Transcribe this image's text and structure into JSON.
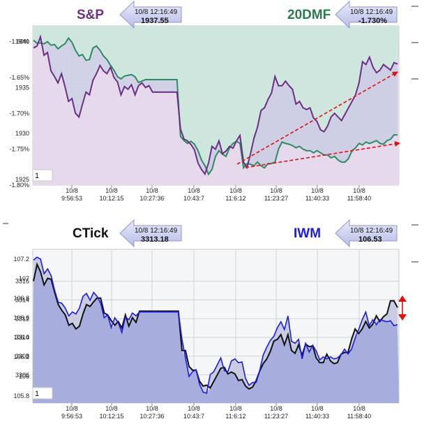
{
  "chart_data": [
    {
      "type": "line",
      "panel": "top",
      "series": [
        {
          "name": "S&P",
          "color": "#6a2f82",
          "values": [
            1939.3,
            1939.5,
            1940.5,
            1938.5,
            1938.8,
            1936.8,
            1936.2,
            1935.5,
            1936.5,
            1935.1,
            1933.5,
            1933.8,
            1932.2,
            1931.8,
            1933.2,
            1934.5,
            1934.2,
            1935.8,
            1936.5,
            1937.4,
            1936.8,
            1936.5,
            1937.2,
            1936.1,
            1935.6,
            1934.2,
            1935.1,
            1934.8,
            1935.3,
            1934.2,
            1935.2,
            1935.5,
            1935.0,
            1935.2,
            1934.5,
            1934.5,
            1934.5,
            1934.5,
            1934.5,
            1934.5,
            1934.5,
            1934.5,
            1930.5,
            1929.4,
            1929.2,
            1928.8,
            1928.2,
            1926.8,
            1926.1,
            1925.6,
            1926.8,
            1928.6,
            1928.3,
            1929.2,
            1927.8,
            1928.1,
            1928.6,
            1928.4,
            1929.2,
            1929.8,
            1926.9,
            1926.3,
            1927.8,
            1929.5,
            1930.7,
            1932.5,
            1932.8,
            1933.7,
            1934.4,
            1936.2,
            1935.2,
            1935.2,
            1935.7,
            1935.2,
            1934.8,
            1933.2,
            1933.5,
            1932.8,
            1932.6,
            1932.8,
            1931.7,
            1931.3,
            1930.4,
            1930.2,
            1930.8,
            1931.8,
            1932.2,
            1931.8,
            1931.4,
            1932.1,
            1932.8,
            1933.5,
            1934.2,
            1935.5,
            1937.8,
            1937.5,
            1938.3,
            1937.2,
            1936.6,
            1936.9,
            1937.5,
            1937.2,
            1936.9,
            1937.7,
            1937.55
          ]
        },
        {
          "name": "20DMF",
          "color": "#2e8a63",
          "values": [
            -1.598,
            -1.602,
            -1.602,
            -1.603,
            -1.6,
            -1.605,
            -1.604,
            -1.61,
            -1.606,
            -1.603,
            -1.595,
            -1.601,
            -1.612,
            -1.62,
            -1.618,
            -1.626,
            -1.625,
            -1.609,
            -1.606,
            -1.612,
            -1.62,
            -1.625,
            -1.633,
            -1.64,
            -1.649,
            -1.652,
            -1.648,
            -1.647,
            -1.646,
            -1.649,
            -1.657,
            -1.655,
            -1.653,
            -1.653,
            -1.653,
            -1.653,
            -1.653,
            -1.653,
            -1.653,
            -1.653,
            -1.653,
            -1.653,
            -1.732,
            -1.738,
            -1.742,
            -1.739,
            -1.743,
            -1.752,
            -1.765,
            -1.773,
            -1.785,
            -1.778,
            -1.76,
            -1.752,
            -1.757,
            -1.76,
            -1.748,
            -1.742,
            -1.739,
            -1.742,
            -1.776,
            -1.77,
            -1.771,
            -1.773,
            -1.768,
            -1.773,
            -1.776,
            -1.77,
            -1.77,
            -1.768,
            -1.75,
            -1.74,
            -1.742,
            -1.743,
            -1.745,
            -1.748,
            -1.746,
            -1.75,
            -1.752,
            -1.752,
            -1.755,
            -1.752,
            -1.755,
            -1.758,
            -1.758,
            -1.762,
            -1.76,
            -1.765,
            -1.768,
            -1.768,
            -1.763,
            -1.752,
            -1.748,
            -1.742,
            -1.744,
            -1.74,
            -1.742,
            -1.74,
            -1.738,
            -1.742,
            -1.743,
            -1.738,
            -1.736,
            -1.73,
            -1.73
          ]
        }
      ],
      "x_tick_dates": [
        "10/8",
        "10/8",
        "10/8",
        "10/8",
        "10/8",
        "10/8",
        "10/8",
        "10/8"
      ],
      "x_tick_times": [
        "9:56:53",
        "10:12:15",
        "10:27:36",
        "10:43:7",
        "11:6:12",
        "11:23:27",
        "11:40:33",
        "11:58:40"
      ],
      "y_left_ticks_primary": [
        "1940",
        "1935",
        "1930",
        "1925"
      ],
      "y_left_ticks_secondary": [
        "-1.60%",
        "-1.65%",
        "-1.70%",
        "-1.75%",
        "-1.80%"
      ],
      "y_primary_range": [
        1924.4,
        1941.7
      ],
      "y_secondary_range": [
        -1.8,
        -1.578
      ],
      "page_indicator": "1",
      "grid": true
    },
    {
      "type": "line",
      "panel": "bottom",
      "series": [
        {
          "name": "CTick",
          "color": "#111111",
          "values": [
            3316.0,
            3317.8,
            3317.0,
            3315.6,
            3316.3,
            3316.2,
            3314.8,
            3313.5,
            3312.9,
            3312.4,
            3311.3,
            3311.5,
            3310.9,
            3311.2,
            3312.5,
            3313.5,
            3313.3,
            3313.8,
            3314.2,
            3314.2,
            3312.6,
            3312.4,
            3311.8,
            3311.3,
            3311.7,
            3311.0,
            3312.4,
            3311.2,
            3312.1,
            3311.6,
            3312.8,
            3312.8,
            3312.8,
            3312.8,
            3312.8,
            3312.8,
            3312.8,
            3312.8,
            3312.8,
            3312.8,
            3312.8,
            3312.8,
            3308.6,
            3308.6,
            3306.9,
            3306.5,
            3306.5,
            3305.3,
            3304.8,
            3304.9,
            3304.6,
            3305.3,
            3306.0,
            3306.7,
            3306.8,
            3306.1,
            3306.3,
            3306.1,
            3305.4,
            3305.5,
            3304.8,
            3304.5,
            3304.7,
            3305.4,
            3306.4,
            3307.2,
            3307.7,
            3308.5,
            3309.6,
            3309.8,
            3310.3,
            3309.2,
            3310.3,
            3308.6,
            3308.3,
            3309.2,
            3308.1,
            3309.3,
            3309.0,
            3309.1,
            3307.8,
            3307.3,
            3307.3,
            3308.2,
            3307.5,
            3307.2,
            3307.3,
            3308.2,
            3308.4,
            3308.4,
            3309.8,
            3310.9,
            3310.4,
            3310.9,
            3311.7,
            3311.0,
            3311.4,
            3312.3,
            3311.7,
            3312.2,
            3312.5,
            3313.9,
            3313.9,
            3313.18
          ]
        },
        {
          "name": "IWM",
          "color": "#1c1ce0",
          "values": [
            107.19,
            107.22,
            107.2,
            107.05,
            107.1,
            107.03,
            106.88,
            106.76,
            106.75,
            106.7,
            106.62,
            106.66,
            106.64,
            106.7,
            106.82,
            106.85,
            106.78,
            106.86,
            106.82,
            106.75,
            106.6,
            106.63,
            106.5,
            106.6,
            106.55,
            106.45,
            106.61,
            106.58,
            106.65,
            106.62,
            106.66,
            106.66,
            106.66,
            106.66,
            106.66,
            106.66,
            106.66,
            106.66,
            106.66,
            106.66,
            106.66,
            106.66,
            106.38,
            106.19,
            106.0,
            106.05,
            106.07,
            105.92,
            105.84,
            105.83,
            106.02,
            106.05,
            106.12,
            106.19,
            106.06,
            106.05,
            106.16,
            106.18,
            106.14,
            106.15,
            105.98,
            105.91,
            105.94,
            105.94,
            106.06,
            106.22,
            106.3,
            106.37,
            106.41,
            106.5,
            106.56,
            106.48,
            106.62,
            106.36,
            106.34,
            106.38,
            106.18,
            106.34,
            106.25,
            106.32,
            106.26,
            106.17,
            106.2,
            106.18,
            106.2,
            106.18,
            106.19,
            106.22,
            106.28,
            106.23,
            106.28,
            106.39,
            106.48,
            106.58,
            106.66,
            106.52,
            106.58,
            106.53,
            106.58,
            106.57,
            106.56,
            106.57,
            106.52,
            106.53
          ]
        }
      ],
      "x_tick_dates": [
        "10/8",
        "10/8",
        "10/8",
        "10/8",
        "10/8",
        "10/8",
        "10/8",
        "10/8"
      ],
      "x_tick_times": [
        "9:56:53",
        "10:12:15",
        "10:27:36",
        "10:43:7",
        "11:6:12",
        "11:23:27",
        "11:40:33",
        "11:58:40"
      ],
      "y_left_ticks_primary": [
        "3316",
        "3314",
        "3312",
        "3310",
        "3308",
        "3306"
      ],
      "y_left_ticks_secondary": [
        "107.2",
        "107",
        "106.8",
        "106.6",
        "106.4",
        "106.2",
        "106",
        "105.8"
      ],
      "y_primary_range": [
        3303.0,
        3319.4
      ],
      "y_secondary_range": [
        105.73,
        107.3
      ],
      "page_indicator": "1",
      "grid": true
    }
  ],
  "badges": [
    {
      "label": "S&P",
      "label_color": "#6a2f82",
      "timestamp": "10/8 12:16:49",
      "value": "1937.55"
    },
    {
      "label": "20DMF",
      "label_color": "#2e7a4e",
      "timestamp": "10/8 12:16:49",
      "value": "-1.730%"
    },
    {
      "label": "CTick",
      "label_color": "#111111",
      "timestamp": "10/8 12:16:49",
      "value": "3313.18"
    },
    {
      "label": "IWM",
      "label_color": "#1c1ce0",
      "timestamp": "10/8 12:16:49",
      "value": "106.53"
    }
  ],
  "colors": {
    "top_area_fill": "#e6d9ec",
    "top_region_fill": "#cfe6de",
    "bottom_area_fill": "#a7aede",
    "band_fill": "#c9cce3",
    "annotation_red": "#e01010"
  }
}
